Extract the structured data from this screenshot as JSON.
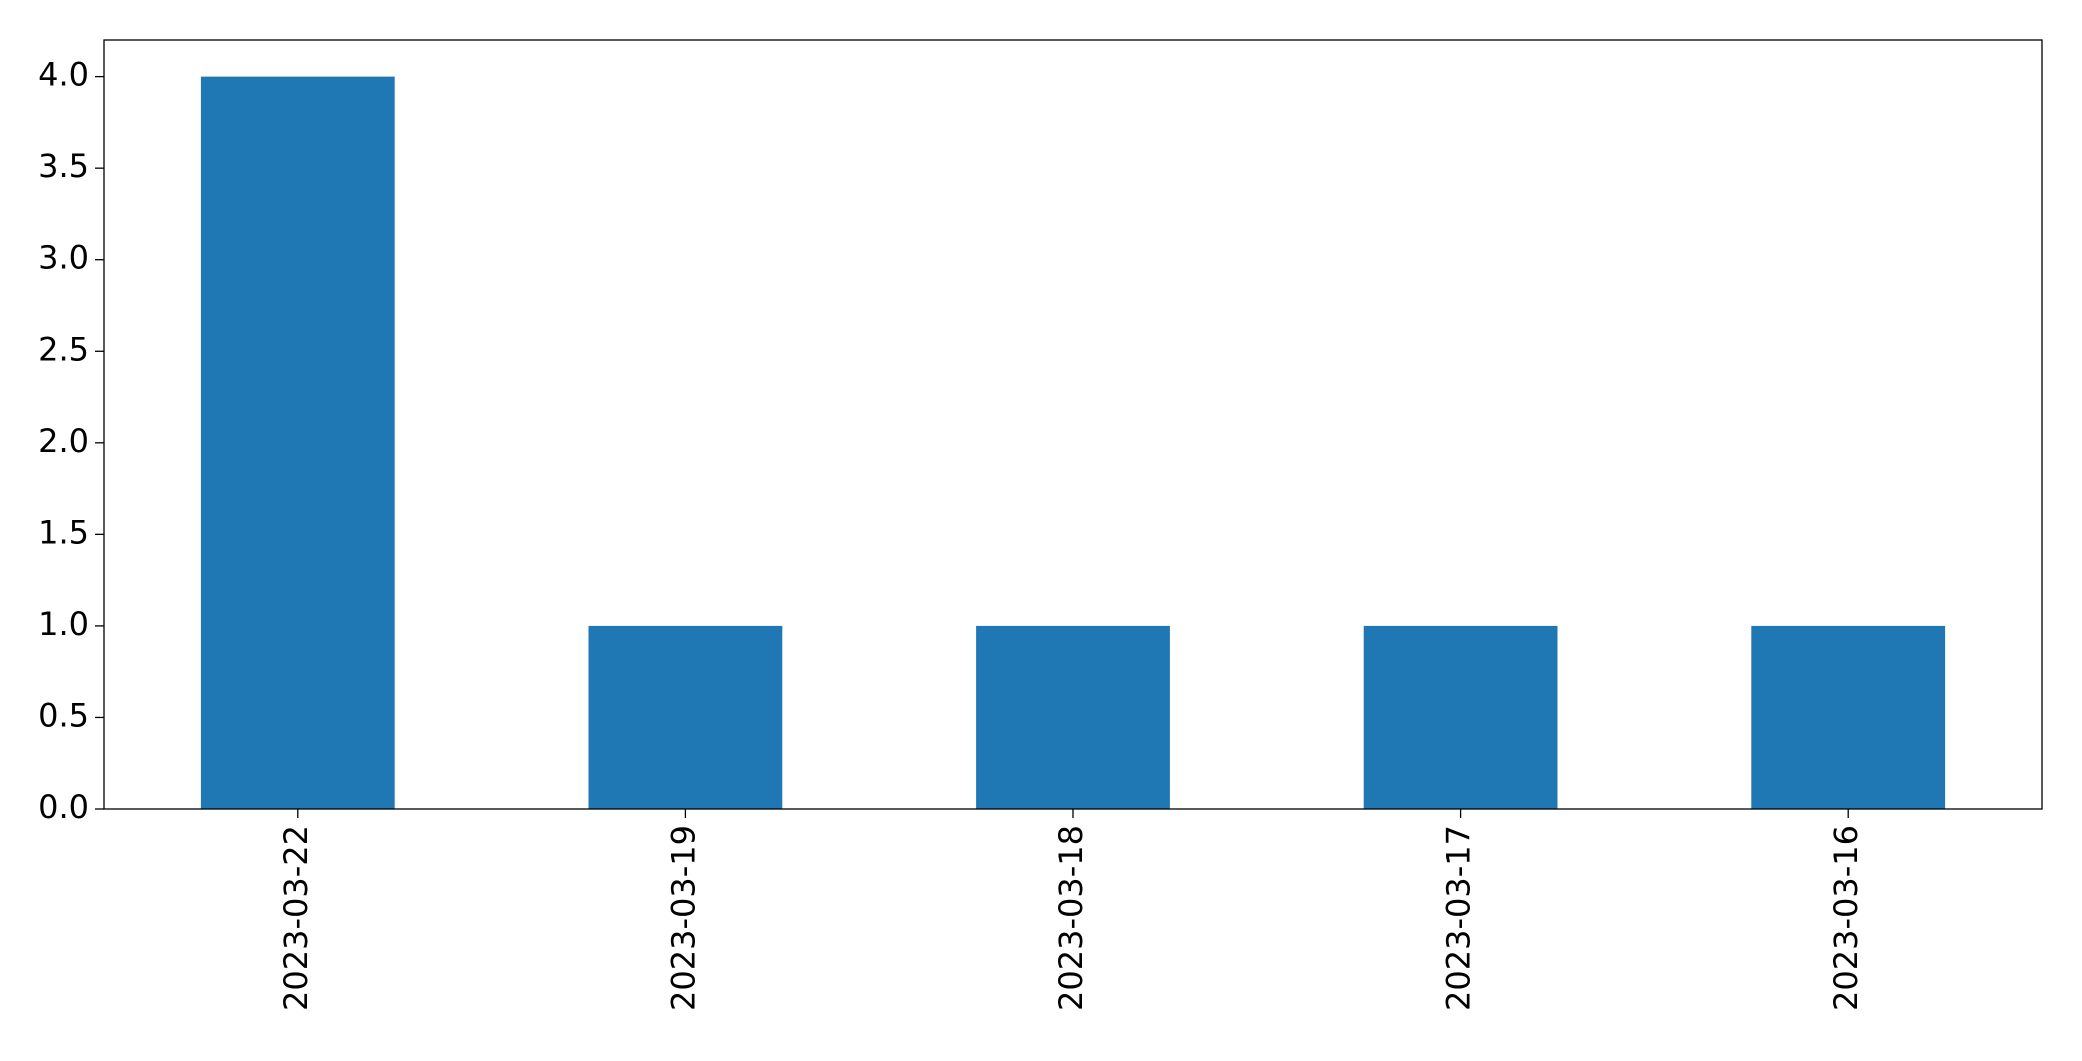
{
  "chart_data": {
    "type": "bar",
    "categories": [
      "2023-03-22",
      "2023-03-19",
      "2023-03-18",
      "2023-03-17",
      "2023-03-16"
    ],
    "values": [
      4,
      1,
      1,
      1,
      1
    ],
    "color": "#1f77b4",
    "ylim": [
      0,
      4.2
    ],
    "yticks": [
      {
        "value": 0,
        "label": "0.0"
      },
      {
        "value": 0.5,
        "label": "0.5"
      },
      {
        "value": 1,
        "label": "1.0"
      },
      {
        "value": 1.5,
        "label": "1.5"
      },
      {
        "value": 2,
        "label": "2.0"
      },
      {
        "value": 2.5,
        "label": "2.5"
      },
      {
        "value": 3,
        "label": "3.0"
      },
      {
        "value": 3.5,
        "label": "3.5"
      },
      {
        "value": 4,
        "label": "4.0"
      }
    ],
    "grid": false
  }
}
